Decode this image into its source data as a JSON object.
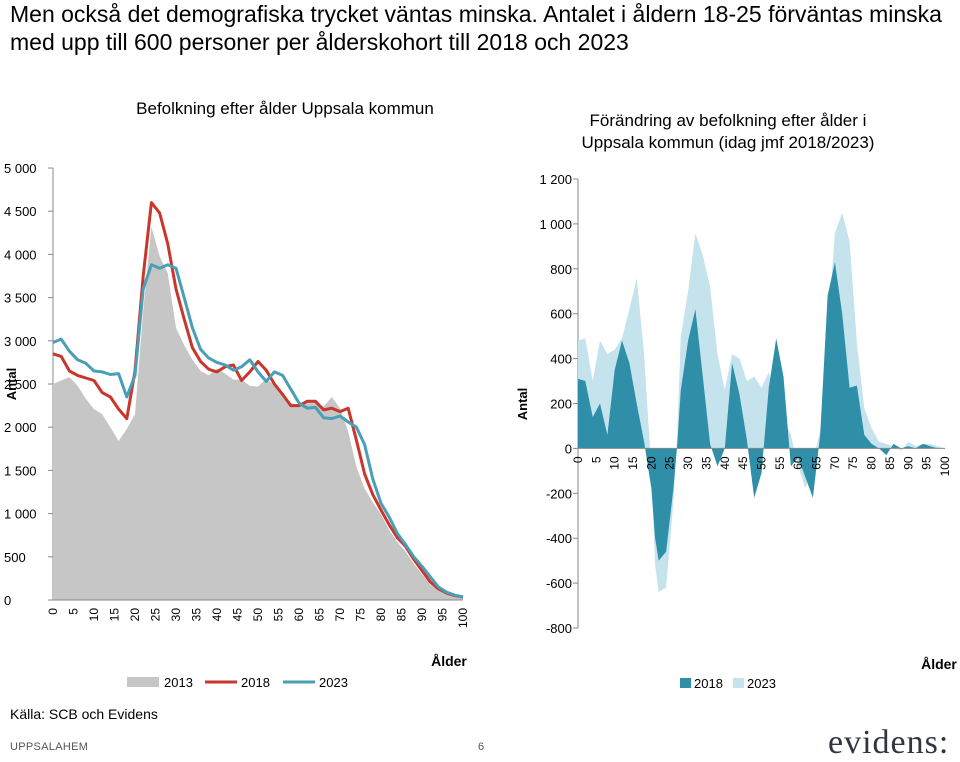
{
  "headline": "Men också det demografiska trycket väntas minska. Antalet i åldern 18-25 förväntas minska med upp till 600 personer per ålderskohort till 2018 och 2023",
  "source": "Källa: SCB och Evidens",
  "footer": {
    "left": "UPPSALAHEM",
    "page": "6"
  },
  "logo": "evidens:",
  "colors": {
    "s2013": "#c6c6c6",
    "s2018": "#c9372c",
    "s2023": "#4a9eb5",
    "dark_teal": "#2f8fa8",
    "light_teal": "#c5e3ec"
  },
  "chart_data": [
    {
      "type": "line",
      "title": "Befolkning efter ålder Uppsala kommun",
      "xlabel": "Ålder",
      "ylabel": "Antal",
      "ylim": [
        0,
        5000
      ],
      "y_ticks": [
        0,
        500,
        1000,
        1500,
        2000,
        2500,
        3000,
        3500,
        4000,
        4500,
        5000
      ],
      "y_tick_labels": [
        "0",
        "500",
        "1 000",
        "1 500",
        "2 000",
        "2 500",
        "3 000",
        "3 500",
        "4 000",
        "4 500",
        "5 000"
      ],
      "x_ticks": [
        0,
        5,
        10,
        15,
        20,
        25,
        30,
        35,
        40,
        45,
        50,
        55,
        60,
        65,
        70,
        75,
        80,
        85,
        90,
        95,
        100
      ],
      "legend": [
        "2013",
        "2018",
        "2023"
      ],
      "legend_position": "bottom",
      "series": [
        {
          "name": "2013",
          "style": "area",
          "x": [
            0,
            2,
            4,
            6,
            8,
            10,
            12,
            14,
            16,
            18,
            20,
            22,
            24,
            26,
            28,
            30,
            32,
            34,
            36,
            38,
            40,
            42,
            44,
            46,
            48,
            50,
            52,
            54,
            56,
            58,
            60,
            62,
            64,
            66,
            68,
            70,
            72,
            74,
            76,
            78,
            80,
            82,
            84,
            86,
            88,
            90,
            92,
            94,
            96,
            98,
            100
          ],
          "values": [
            2500,
            2540,
            2580,
            2480,
            2330,
            2210,
            2150,
            2000,
            1840,
            1980,
            2150,
            3350,
            4320,
            3980,
            3780,
            3150,
            2950,
            2780,
            2650,
            2600,
            2680,
            2620,
            2550,
            2550,
            2480,
            2470,
            2560,
            2490,
            2380,
            2280,
            2250,
            2300,
            2290,
            2240,
            2350,
            2220,
            1950,
            1540,
            1290,
            1130,
            990,
            810,
            670,
            560,
            420,
            300,
            180,
            110,
            70,
            45,
            30
          ]
        },
        {
          "name": "2018",
          "style": "line",
          "x": [
            0,
            2,
            4,
            6,
            8,
            10,
            12,
            14,
            16,
            18,
            20,
            22,
            24,
            26,
            28,
            30,
            32,
            34,
            36,
            38,
            40,
            42,
            44,
            46,
            48,
            50,
            52,
            54,
            56,
            58,
            60,
            62,
            64,
            66,
            68,
            70,
            72,
            74,
            76,
            78,
            80,
            82,
            84,
            86,
            88,
            90,
            92,
            94,
            96,
            98,
            100
          ],
          "values": [
            2850,
            2820,
            2650,
            2600,
            2570,
            2540,
            2400,
            2350,
            2210,
            2100,
            2650,
            3750,
            4600,
            4480,
            4120,
            3600,
            3250,
            2920,
            2760,
            2670,
            2640,
            2700,
            2720,
            2540,
            2640,
            2760,
            2660,
            2500,
            2380,
            2250,
            2250,
            2300,
            2300,
            2200,
            2220,
            2180,
            2220,
            1850,
            1460,
            1220,
            1040,
            870,
            720,
            620,
            470,
            340,
            210,
            130,
            80,
            50,
            35
          ]
        },
        {
          "name": "2023",
          "style": "line",
          "x": [
            0,
            2,
            4,
            6,
            8,
            10,
            12,
            14,
            16,
            18,
            20,
            22,
            24,
            26,
            28,
            30,
            32,
            34,
            36,
            38,
            40,
            42,
            44,
            46,
            48,
            50,
            52,
            54,
            56,
            58,
            60,
            62,
            64,
            66,
            68,
            70,
            72,
            74,
            76,
            78,
            80,
            82,
            84,
            86,
            88,
            90,
            92,
            94,
            96,
            98,
            100
          ],
          "values": [
            2980,
            3020,
            2880,
            2780,
            2740,
            2650,
            2640,
            2610,
            2620,
            2350,
            2600,
            3600,
            3880,
            3840,
            3880,
            3840,
            3500,
            3150,
            2900,
            2800,
            2750,
            2720,
            2660,
            2700,
            2780,
            2640,
            2530,
            2640,
            2600,
            2440,
            2280,
            2220,
            2230,
            2110,
            2100,
            2130,
            2060,
            2000,
            1800,
            1400,
            1120,
            960,
            770,
            640,
            500,
            390,
            270,
            150,
            90,
            55,
            35
          ]
        }
      ]
    },
    {
      "type": "area",
      "title": "Förändring av befolkning efter ålder i Uppsala kommun (idag jmf 2018/2023)",
      "xlabel": "Ålder",
      "ylabel": "Antal",
      "ylim": [
        -800,
        1200
      ],
      "y_ticks": [
        -800,
        -600,
        -400,
        -200,
        0,
        200,
        400,
        600,
        800,
        1000,
        1200
      ],
      "y_tick_labels": [
        "-800",
        "-600",
        "-400",
        "-200",
        "0",
        "200",
        "400",
        "600",
        "800",
        "1 000",
        "1 200"
      ],
      "x_ticks": [
        0,
        5,
        10,
        15,
        20,
        25,
        30,
        35,
        40,
        45,
        50,
        55,
        60,
        65,
        70,
        75,
        80,
        85,
        90,
        95,
        100
      ],
      "legend": [
        "2018",
        "2023"
      ],
      "legend_position": "bottom",
      "series": [
        {
          "name": "2023",
          "x": [
            0,
            2,
            4,
            6,
            8,
            10,
            12,
            14,
            16,
            18,
            20,
            21,
            22,
            24,
            26,
            27,
            28,
            30,
            32,
            34,
            36,
            38,
            40,
            42,
            44,
            46,
            48,
            50,
            52,
            54,
            56,
            58,
            60,
            62,
            64,
            66,
            68,
            70,
            72,
            74,
            76,
            78,
            80,
            82,
            84,
            86,
            88,
            90,
            92,
            94,
            96,
            98,
            100
          ],
          "values": [
            480,
            490,
            300,
            480,
            420,
            440,
            490,
            620,
            760,
            420,
            -100,
            -520,
            -640,
            -620,
            -240,
            50,
            500,
            700,
            960,
            860,
            720,
            420,
            260,
            420,
            400,
            300,
            320,
            270,
            340,
            200,
            140,
            60,
            -80,
            -180,
            -60,
            80,
            520,
            960,
            1050,
            920,
            470,
            180,
            90,
            30,
            20,
            10,
            -10,
            30,
            10,
            20,
            20,
            10,
            0
          ]
        },
        {
          "name": "2018",
          "x": [
            0,
            2,
            4,
            6,
            8,
            10,
            12,
            14,
            16,
            18,
            20,
            21,
            22,
            24,
            26,
            27,
            28,
            30,
            32,
            34,
            36,
            38,
            40,
            42,
            44,
            46,
            48,
            50,
            52,
            54,
            56,
            58,
            60,
            62,
            64,
            66,
            68,
            70,
            72,
            74,
            76,
            78,
            80,
            82,
            84,
            86,
            88,
            90,
            92,
            94,
            96,
            98,
            100
          ],
          "values": [
            310,
            300,
            140,
            200,
            60,
            350,
            480,
            380,
            200,
            30,
            -180,
            -400,
            -500,
            -460,
            -180,
            10,
            260,
            480,
            620,
            320,
            20,
            -80,
            0,
            380,
            240,
            40,
            -220,
            -110,
            270,
            490,
            320,
            -80,
            -40,
            -130,
            -220,
            60,
            680,
            830,
            600,
            270,
            280,
            60,
            20,
            0,
            -30,
            20,
            0,
            10,
            0,
            20,
            10,
            0,
            0
          ]
        }
      ]
    }
  ]
}
